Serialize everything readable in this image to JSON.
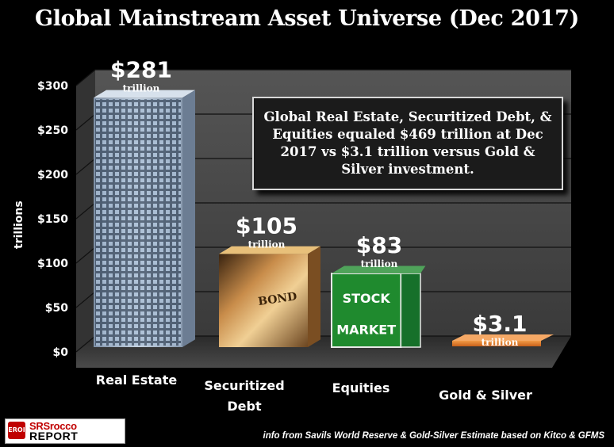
{
  "title": "Global Mainstream Asset Universe (Dec 2017)",
  "annotation": "Global Real Estate, Securitized Debt, & Equities equaled $469 trillion at  Dec 2017 vs $3.1 trillion versus Gold & Silver investment.",
  "source": "info from Savils World Reserve & Gold-Silver Estimate based on Kitco & GFMS",
  "logo": {
    "badge": "EROI",
    "line1": "SRSrocco",
    "line2": "REPORT"
  },
  "colors": {
    "background": "#000000",
    "wall": "#4a4a4a",
    "floor": "#3a3a3a",
    "gold_bar": "#e07a2a",
    "equities_green": "#1f8a2e"
  },
  "chart_data": {
    "type": "bar",
    "title": "Global Mainstream Asset Universe (Dec 2017)",
    "ylabel": "trillions",
    "ylim": [
      0,
      300
    ],
    "yticks": [
      "$0",
      "$50",
      "$100",
      "$150",
      "$200",
      "$250",
      "$300"
    ],
    "grid": true,
    "categories": [
      "Real Estate",
      "Securitized Debt",
      "Equities",
      "Gold & Silver"
    ],
    "values": [
      281,
      105,
      83,
      3.1
    ],
    "value_labels": [
      "$281",
      "$105",
      "$83",
      "$3.1"
    ],
    "unit_label": "trillion",
    "bar_images": [
      "skyscraper",
      "dollar-bill",
      "stock-market-sign",
      "orange-block"
    ]
  }
}
